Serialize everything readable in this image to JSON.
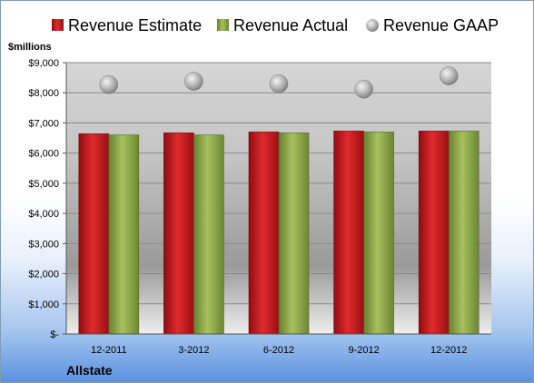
{
  "chart_data": {
    "type": "bar",
    "unit_label": "$millions",
    "company": "Allstate",
    "categories": [
      "12-2011",
      "3-2012",
      "6-2012",
      "9-2012",
      "12-2012"
    ],
    "series": [
      {
        "name": "Revenue Estimate",
        "kind": "bar",
        "color": "#c0181c",
        "values": [
          6640,
          6670,
          6700,
          6730,
          6730
        ]
      },
      {
        "name": "Revenue Actual",
        "kind": "bar",
        "color": "#8fa84a",
        "values": [
          6600,
          6600,
          6670,
          6700,
          6730
        ]
      },
      {
        "name": "Revenue GAAP",
        "kind": "marker",
        "color": "#b8b8b8",
        "values": [
          8270,
          8380,
          8300,
          8120,
          8560
        ]
      }
    ],
    "y_ticks": [
      "$-",
      "$1,000",
      "$2,000",
      "$3,000",
      "$4,000",
      "$5,000",
      "$6,000",
      "$7,000",
      "$8,000",
      "$9,000"
    ],
    "ylim": [
      0,
      9000
    ],
    "grid": true,
    "legend_position": "top"
  }
}
